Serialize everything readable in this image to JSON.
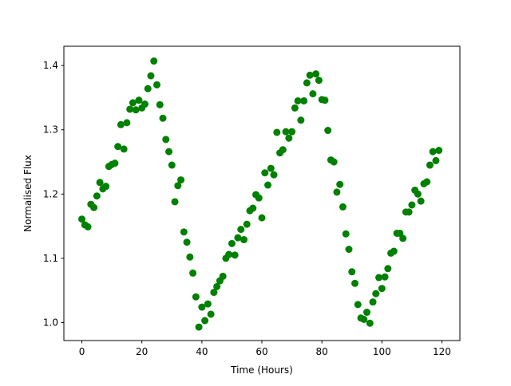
{
  "chart_data": {
    "type": "scatter",
    "title": "",
    "xlabel": "Time (Hours)",
    "ylabel": "Normalised Flux",
    "xlim": [
      -6,
      126
    ],
    "ylim": [
      0.972,
      1.43
    ],
    "xticks": [
      0,
      20,
      40,
      60,
      80,
      100,
      120
    ],
    "yticks": [
      1.0,
      1.1,
      1.2,
      1.3,
      1.4
    ],
    "xtick_labels": [
      "0",
      "20",
      "40",
      "60",
      "80",
      "100",
      "120"
    ],
    "ytick_labels": [
      "1.0",
      "1.1",
      "1.2",
      "1.3",
      "1.4"
    ],
    "grid": false,
    "legend": "none",
    "marker_color": "#008000",
    "x": [
      0,
      1,
      2,
      3,
      4,
      5,
      6,
      7,
      8,
      9,
      10,
      11,
      12,
      13,
      14,
      15,
      16,
      17,
      18,
      19,
      20,
      21,
      22,
      23,
      24,
      25,
      26,
      27,
      28,
      29,
      30,
      31,
      32,
      33,
      34,
      35,
      36,
      37,
      38,
      39,
      40,
      41,
      42,
      43,
      44,
      45,
      46,
      47,
      48,
      49,
      50,
      51,
      52,
      53,
      54,
      55,
      56,
      57,
      58,
      59,
      60,
      61,
      62,
      63,
      64,
      65,
      66,
      67,
      68,
      69,
      70,
      71,
      72,
      73,
      74,
      75,
      76,
      77,
      78,
      79,
      80,
      81,
      82,
      83,
      84,
      85,
      86,
      87,
      88,
      89,
      90,
      91,
      92,
      93,
      94,
      95,
      96,
      97,
      98,
      99,
      100,
      101,
      102,
      103,
      104,
      105,
      106,
      107,
      108,
      109,
      110,
      111,
      112,
      113,
      114,
      115,
      116,
      117,
      118,
      119
    ],
    "y": [
      1.161,
      1.152,
      1.149,
      1.184,
      1.179,
      1.197,
      1.218,
      1.208,
      1.212,
      1.243,
      1.246,
      1.248,
      1.274,
      1.308,
      1.27,
      1.311,
      1.332,
      1.342,
      1.331,
      1.346,
      1.334,
      1.34,
      1.364,
      1.384,
      1.407,
      1.37,
      1.339,
      1.318,
      1.285,
      1.266,
      1.245,
      1.188,
      1.213,
      1.222,
      1.141,
      1.125,
      1.102,
      1.077,
      1.04,
      0.993,
      1.024,
      1.003,
      1.029,
      1.013,
      1.047,
      1.056,
      1.065,
      1.072,
      1.1,
      1.106,
      1.123,
      1.105,
      1.132,
      1.145,
      1.129,
      1.153,
      1.174,
      1.178,
      1.199,
      1.194,
      1.163,
      1.233,
      1.214,
      1.24,
      1.23,
      1.296,
      1.264,
      1.269,
      1.297,
      1.287,
      1.297,
      1.334,
      1.345,
      1.315,
      1.345,
      1.373,
      1.385,
      1.356,
      1.387,
      1.377,
      1.347,
      1.346,
      1.299,
      1.253,
      1.25,
      1.203,
      1.215,
      1.18,
      1.138,
      1.114,
      1.079,
      1.061,
      1.028,
      1.007,
      1.005,
      1.016,
      0.999,
      1.032,
      1.045,
      1.07,
      1.053,
      1.071,
      1.084,
      1.108,
      1.111,
      1.139,
      1.139,
      1.131,
      1.172,
      1.172,
      1.183,
      1.206,
      1.2,
      1.189,
      1.216,
      1.219,
      1.245,
      1.266,
      1.252,
      1.268
    ]
  }
}
